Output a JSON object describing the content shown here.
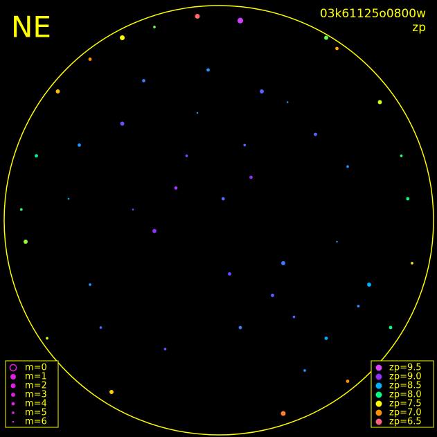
{
  "chart_data": {
    "type": "scatter",
    "title": "NE",
    "subtitle": "03k61125o0800w",
    "color_label": "zp",
    "xlim": [
      -1,
      1
    ],
    "ylim": [
      -1,
      1
    ],
    "x": [
      0.02,
      -0.15,
      0.3,
      -0.4,
      0.45,
      -0.6,
      0.1,
      0.2,
      -0.25,
      0.55,
      -0.05,
      0.35,
      -0.45,
      0.15,
      0.6,
      -0.7,
      0.05,
      -0.3,
      0.4,
      0.25,
      -0.1,
      0.5,
      -0.55,
      0.7,
      -0.2,
      0.12,
      -0.35,
      0.32,
      0.65,
      -0.65,
      -0.75,
      -0.6,
      -0.45,
      -0.3,
      0.55,
      0.75,
      0.85,
      -0.85,
      -0.9,
      0.9,
      0.8,
      -0.5,
      0.3,
      0.6,
      -0.8,
      0.5,
      -0.1,
      0.1,
      0.88,
      -0.92
    ],
    "values": [
      0.1,
      0.3,
      -0.2,
      0.05,
      0.4,
      -0.3,
      -0.5,
      0.6,
      -0.6,
      -0.1,
      0.7,
      -0.45,
      0.45,
      0.2,
      0.25,
      0.1,
      -0.25,
      -0.05,
      -0.7,
      -0.35,
      0.5,
      -0.55,
      -0.5,
      -0.3,
      0.15,
      0.35,
      0.65,
      0.55,
      -0.4,
      0.35,
      0.6,
      0.75,
      0.85,
      0.9,
      0.8,
      0.55,
      0.3,
      0.3,
      -0.1,
      -0.2,
      -0.5,
      -0.8,
      -0.9,
      -0.75,
      -0.55,
      0.85,
      0.95,
      0.93,
      0.1,
      0.05
    ],
    "zp": [
      8.8,
      8.9,
      8.7,
      8.9,
      8.8,
      8.6,
      8.7,
      8.8,
      8.9,
      8.7,
      8.6,
      8.8,
      8.9,
      9.0,
      8.6,
      8.5,
      8.9,
      9.0,
      8.6,
      8.8,
      8.7,
      8.5,
      8.8,
      8.5,
      9.1,
      8.8,
      8.7,
      8.6,
      8.6,
      8.6,
      7.2,
      7.0,
      7.5,
      7.8,
      7.1,
      7.6,
      7.9,
      8.1,
      7.7,
      7.4,
      8.0,
      7.3,
      6.8,
      7.0,
      7.6,
      7.8,
      6.6,
      9.4,
      8.0,
      7.9
    ],
    "m": [
      4,
      5,
      3,
      6,
      4,
      5,
      4,
      3,
      5,
      6,
      4,
      5,
      3,
      4,
      5,
      6,
      4,
      3,
      5,
      4,
      6,
      4,
      5,
      3,
      4,
      5,
      4,
      6,
      5,
      4,
      3,
      4,
      2,
      5,
      4,
      3,
      5,
      4,
      3,
      5,
      4,
      3,
      2,
      4,
      5,
      3,
      2,
      1,
      4,
      5
    ],
    "m_legend": [
      {
        "value": 0,
        "label": "m=0"
      },
      {
        "value": 1,
        "label": "m=1"
      },
      {
        "value": 2,
        "label": "m=2"
      },
      {
        "value": 3,
        "label": "m=3"
      },
      {
        "value": 4,
        "label": "m=4"
      },
      {
        "value": 5,
        "label": "m=5"
      },
      {
        "value": 6,
        "label": "m=6"
      }
    ],
    "zp_legend": [
      {
        "value": 9.5,
        "label": "zp=9.5",
        "color": "#e040ff"
      },
      {
        "value": 9.0,
        "label": "zp=9.0",
        "color": "#9030ff"
      },
      {
        "value": 8.5,
        "label": "zp=8.5",
        "color": "#00b0ff"
      },
      {
        "value": 8.0,
        "label": "zp=8.0",
        "color": "#00ff80"
      },
      {
        "value": 7.5,
        "label": "zp=7.5",
        "color": "#ffff00"
      },
      {
        "value": 7.0,
        "label": "zp=7.0",
        "color": "#ff9000"
      },
      {
        "value": 6.5,
        "label": "zp=6.5",
        "color": "#ff6080"
      }
    ],
    "legend_color": "#e020e0"
  }
}
